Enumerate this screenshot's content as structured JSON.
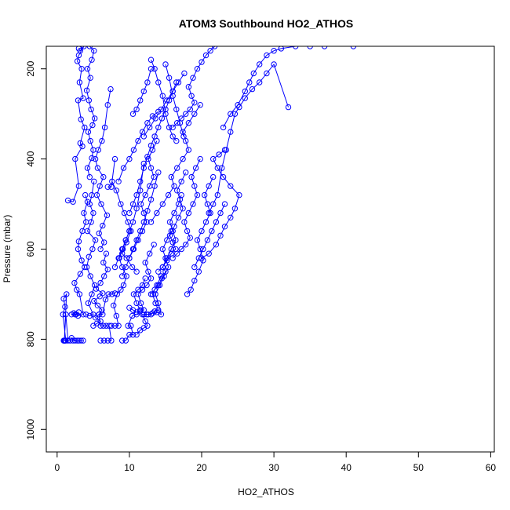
{
  "chart_data": {
    "type": "line",
    "title": "ATOM3 Southbound HO2_ATHOS",
    "xlabel": "HO2_ATHOS",
    "ylabel": "Pressure (mbar)",
    "xlim": [
      -1.5,
      60.5
    ],
    "ylim": [
      1050,
      150
    ],
    "y_reversed": true,
    "x_ticks": [
      0,
      10,
      20,
      30,
      40,
      50,
      60
    ],
    "y_ticks": [
      200,
      400,
      600,
      800,
      1000
    ],
    "grid": false,
    "legend": "none",
    "marker": "open-circle",
    "color": "#0000ff",
    "series": [
      {
        "x": [
          1.0,
          1.2,
          0.8,
          1.1,
          0.9,
          1.3,
          1.0,
          1.5,
          1.2,
          1.0,
          0.9,
          1.1,
          1.8,
          2.0,
          2.5,
          2.2,
          2.8,
          3.0,
          3.3,
          3.6
        ],
        "y": [
          803,
          803,
          745,
          728,
          710,
          700,
          803,
          803,
          745,
          803,
          803,
          803,
          803,
          797,
          803,
          803,
          803,
          803,
          803,
          803
        ]
      },
      {
        "x": [
          2.0,
          2.6,
          2.3,
          3.0,
          2.5,
          2.9,
          3.6,
          3.1,
          2.7,
          2.4,
          3.2,
          3.8,
          3.4,
          2.9,
          3.0,
          3.5,
          4.0,
          3.7,
          4.2,
          3.9
        ],
        "y": [
          745,
          745,
          742,
          740,
          745,
          748,
          745,
          700,
          690,
          675,
          655,
          640,
          625,
          600,
          583,
          560,
          540,
          520,
          495,
          480
        ]
      },
      {
        "x": [
          1.5,
          2.2,
          3.0,
          2.5,
          3.5,
          3.2,
          3.8,
          3.3,
          2.9,
          3.6,
          3.1,
          3.4,
          2.8,
          3.0,
          3.7,
          3.2,
          3.0
        ],
        "y": [
          492,
          495,
          460,
          400,
          372,
          365,
          330,
          312,
          270,
          265,
          230,
          200,
          183,
          170,
          150,
          160,
          155
        ]
      },
      {
        "x": [
          4.0,
          4.5,
          5.0,
          4.3,
          4.8,
          5.2,
          4.6,
          4.1,
          4.4,
          4.9,
          5.3,
          4.2,
          4.7,
          5.0,
          4.5,
          4.8,
          5.1
        ],
        "y": [
          745,
          748,
          745,
          720,
          700,
          680,
          660,
          640,
          617,
          600,
          580,
          560,
          540,
          520,
          500,
          480,
          450
        ]
      },
      {
        "x": [
          4.5,
          4.2,
          4.8,
          5.0,
          4.6,
          4.3,
          4.9,
          5.2,
          4.7,
          4.4,
          4.1,
          4.6,
          4.2,
          4.8,
          5.1,
          4.5
        ],
        "y": [
          440,
          420,
          398,
          380,
          360,
          340,
          325,
          310,
          290,
          270,
          248,
          220,
          200,
          180,
          160,
          150
        ]
      },
      {
        "x": [
          5.0,
          5.5,
          6.0,
          5.3,
          5.8,
          6.2,
          5.6,
          5.1,
          5.9,
          6.3,
          5.4,
          6.0,
          6.5,
          7.0,
          6.4,
          6.8
        ],
        "y": [
          770,
          765,
          760,
          752,
          745,
          735,
          725,
          715,
          705,
          698,
          688,
          675,
          660,
          645,
          630,
          610
        ]
      },
      {
        "x": [
          6.0,
          6.5,
          5.8,
          6.3,
          6.9,
          6.1,
          5.5,
          5.9,
          6.4,
          5.6,
          5.3,
          5.7,
          6.2,
          6.6,
          7.0,
          7.4
        ],
        "y": [
          600,
          585,
          565,
          548,
          525,
          500,
          480,
          460,
          440,
          420,
          400,
          380,
          360,
          330,
          280,
          245
        ]
      },
      {
        "x": [
          6.0,
          6.5,
          7.0,
          7.5,
          7.2,
          6.8,
          6.4,
          6.0,
          5.8,
          6.3,
          6.7,
          7.1,
          7.6,
          8.0
        ],
        "y": [
          803,
          803,
          803,
          803,
          770,
          770,
          770,
          770,
          745,
          745,
          712,
          700,
          700,
          698
        ]
      },
      {
        "x": [
          7.5,
          8.0,
          8.5,
          8.2,
          7.8,
          8.3,
          8.8,
          9.2,
          9.6,
          9.0,
          8.6,
          9.1,
          9.5,
          10.0
        ],
        "y": [
          770,
          770,
          770,
          748,
          725,
          700,
          690,
          680,
          660,
          640,
          620,
          600,
          580,
          560
        ]
      },
      {
        "x": [
          7.0,
          7.5,
          8.0,
          7.6,
          8.2,
          8.8,
          9.3,
          9.8,
          10.2,
          9.6,
          9.0,
          9.6,
          10.4,
          11.0
        ],
        "y": [
          462,
          462,
          400,
          450,
          470,
          500,
          520,
          540,
          560,
          585,
          610,
          620,
          640,
          650
        ]
      },
      {
        "x": [
          9.0,
          9.5,
          10.0,
          10.5,
          10.2,
          9.8,
          10.4,
          11.0,
          11.5,
          11.0,
          10.6,
          11.2,
          11.8,
          12.2
        ],
        "y": [
          803,
          803,
          790,
          790,
          770,
          770,
          748,
          745,
          735,
          720,
          700,
          690,
          680,
          665
        ]
      },
      {
        "x": [
          10.0,
          10.5,
          11.0,
          11.5,
          12.0,
          11.6,
          11.2,
          11.8,
          12.4,
          13.0,
          12.6,
          12.2,
          12.8,
          13.4
        ],
        "y": [
          730,
          735,
          740,
          738,
          735,
          720,
          700,
          690,
          680,
          665,
          650,
          630,
          610,
          590
        ]
      },
      {
        "x": [
          11.0,
          11.5,
          12.0,
          12.5,
          12.2,
          11.8,
          12.4,
          13.0,
          13.5,
          14.0,
          13.6,
          13.2,
          13.8,
          14.4
        ],
        "y": [
          790,
          780,
          775,
          770,
          760,
          745,
          745,
          745,
          738,
          735,
          720,
          700,
          680,
          660
        ]
      },
      {
        "x": [
          12.0,
          12.6,
          13.2,
          13.8,
          14.4,
          14.0,
          13.6,
          14.2,
          14.8,
          15.4,
          15.0,
          14.6,
          15.2,
          15.8
        ],
        "y": [
          745,
          745,
          742,
          740,
          745,
          720,
          700,
          680,
          660,
          640,
          620,
          600,
          580,
          560
        ]
      },
      {
        "x": [
          13.0,
          13.5,
          14.0,
          14.5,
          15.0,
          14.6,
          15.2,
          15.8,
          16.4,
          16.0,
          15.6,
          16.2,
          16.8,
          17.2
        ],
        "y": [
          700,
          690,
          680,
          665,
          650,
          640,
          620,
          600,
          580,
          560,
          540,
          520,
          500,
          480
        ]
      },
      {
        "x": [
          14.0,
          14.6,
          15.2,
          15.8,
          16.4,
          16.0,
          15.6,
          16.2,
          16.8,
          17.4,
          17.0,
          16.6,
          17.2,
          17.8
        ],
        "y": [
          650,
          640,
          625,
          610,
          600,
          585,
          570,
          550,
          530,
          510,
          490,
          470,
          450,
          430
        ]
      },
      {
        "x": [
          16.0,
          16.6,
          17.2,
          17.8,
          18.4,
          18.0,
          17.6,
          18.2,
          18.8,
          19.4,
          19.0,
          18.6,
          19.2,
          19.8
        ],
        "y": [
          620,
          610,
          600,
          590,
          575,
          560,
          540,
          520,
          500,
          480,
          460,
          440,
          420,
          400
        ]
      },
      {
        "x": [
          18.0,
          18.5,
          19.0,
          19.6,
          20.2,
          19.8,
          19.4,
          20.0,
          20.6,
          21.2,
          20.8,
          20.4,
          21.0,
          21.6
        ],
        "y": [
          700,
          690,
          670,
          650,
          625,
          600,
          580,
          560,
          540,
          520,
          500,
          480,
          460,
          440
        ]
      },
      {
        "x": [
          13.0,
          13.8,
          14.6,
          15.4,
          16.2,
          15.8,
          16.6,
          17.4,
          18.2,
          17.8,
          17.4,
          18.2,
          19.0,
          19.8
        ],
        "y": [
          540,
          520,
          500,
          480,
          460,
          440,
          420,
          400,
          380,
          360,
          340,
          320,
          300,
          280
        ]
      },
      {
        "x": [
          16.0,
          16.6,
          17.2,
          17.8,
          18.4,
          19.0,
          18.6,
          18.2,
          18.8,
          19.4,
          20.0,
          20.6,
          21.2,
          21.8
        ],
        "y": [
          330,
          320,
          310,
          300,
          290,
          275,
          260,
          240,
          220,
          200,
          185,
          170,
          160,
          150
        ]
      },
      {
        "x": [
          20.0,
          21.0,
          22.0,
          22.6,
          23.2,
          24.0,
          24.6,
          25.2,
          24.0,
          23.0,
          22.2,
          21.6,
          22.4,
          23.2
        ],
        "y": [
          620,
          610,
          590,
          570,
          550,
          530,
          510,
          480,
          460,
          440,
          420,
          400,
          390,
          380
        ]
      },
      {
        "x": [
          21.0,
          21.6,
          22.2,
          22.8,
          23.4,
          24.0,
          24.6,
          25.2,
          26.0,
          27.0,
          28.0,
          29.0,
          30.0,
          32.0
        ],
        "y": [
          520,
          500,
          480,
          420,
          380,
          340,
          300,
          285,
          265,
          245,
          230,
          210,
          190,
          285
        ]
      },
      {
        "x": [
          23.0,
          24.0,
          25.0,
          26.0,
          26.6,
          27.2,
          28.0,
          29.0,
          30.0,
          31.0,
          33.0,
          35.0,
          37.0,
          41.0
        ],
        "y": [
          330,
          300,
          280,
          250,
          230,
          210,
          190,
          170,
          160,
          155,
          150,
          150,
          150,
          150
        ]
      },
      {
        "x": [
          10.0,
          10.6,
          11.2,
          11.8,
          12.4,
          12.0,
          11.6,
          12.2,
          12.8,
          13.4,
          13.0,
          12.6,
          13.2,
          13.8
        ],
        "y": [
          620,
          600,
          580,
          560,
          540,
          520,
          500,
          480,
          460,
          440,
          420,
          400,
          380,
          360
        ]
      },
      {
        "x": [
          10.0,
          10.5,
          11.0,
          11.5,
          12.0,
          12.5,
          13.0,
          13.5,
          14.0,
          14.5,
          15.0,
          15.5,
          16.0,
          16.5
        ],
        "y": [
          520,
          500,
          480,
          450,
          420,
          395,
          370,
          350,
          330,
          310,
          290,
          270,
          250,
          230
        ]
      },
      {
        "x": [
          9.0,
          9.5,
          10.0,
          10.5,
          11.0,
          11.5,
          12.0,
          12.5,
          13.0,
          13.5,
          14.0
        ],
        "y": [
          660,
          640,
          620,
          600,
          580,
          560,
          540,
          515,
          490,
          460,
          430
        ]
      },
      {
        "x": [
          8.0,
          8.5,
          9.0,
          9.5,
          10.0,
          10.5,
          11.0,
          11.5,
          12.0
        ],
        "y": [
          640,
          620,
          600,
          580,
          560,
          540,
          510,
          470,
          410
        ]
      },
      {
        "x": [
          8.5,
          9.2,
          10.0,
          10.6,
          11.2,
          11.8,
          12.5,
          13.2,
          14.0
        ],
        "y": [
          450,
          420,
          400,
          380,
          360,
          340,
          320,
          305,
          295
        ]
      },
      {
        "x": [
          12.0,
          12.8,
          13.6,
          14.4,
          15.2,
          16.0,
          16.8,
          17.6
        ],
        "y": [
          350,
          330,
          310,
          290,
          270,
          250,
          230,
          210
        ]
      },
      {
        "x": [
          13.0,
          13.5,
          14.0,
          14.6,
          15.0,
          15.5,
          16.0,
          16.5
        ],
        "y": [
          180,
          200,
          230,
          260,
          300,
          330,
          350,
          360
        ]
      },
      {
        "x": [
          19.0,
          19.6,
          20.2,
          20.8,
          21.4,
          22.0,
          22.6,
          23.2
        ],
        "y": [
          640,
          620,
          600,
          580,
          560,
          540,
          520,
          500
        ]
      },
      {
        "x": [
          10.5,
          11.0,
          11.5,
          12.0,
          12.5,
          13.0
        ],
        "y": [
          300,
          290,
          270,
          250,
          230,
          200
        ]
      },
      {
        "x": [
          15.0,
          15.5,
          16.0,
          16.5,
          17.0,
          17.5
        ],
        "y": [
          190,
          220,
          260,
          290,
          320,
          350
        ]
      }
    ]
  }
}
